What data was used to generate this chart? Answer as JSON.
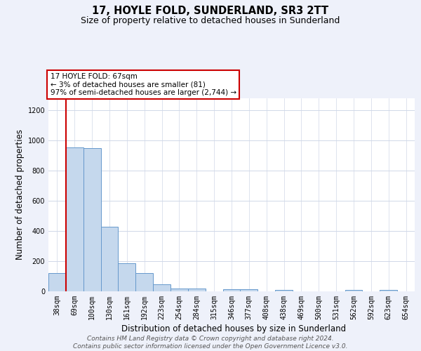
{
  "title": "17, HOYLE FOLD, SUNDERLAND, SR3 2TT",
  "subtitle": "Size of property relative to detached houses in Sunderland",
  "xlabel": "Distribution of detached houses by size in Sunderland",
  "ylabel": "Number of detached properties",
  "categories": [
    "38sqm",
    "69sqm",
    "100sqm",
    "130sqm",
    "161sqm",
    "192sqm",
    "223sqm",
    "254sqm",
    "284sqm",
    "315sqm",
    "346sqm",
    "377sqm",
    "408sqm",
    "438sqm",
    "469sqm",
    "500sqm",
    "531sqm",
    "562sqm",
    "592sqm",
    "623sqm",
    "654sqm"
  ],
  "values": [
    120,
    955,
    948,
    428,
    185,
    120,
    45,
    20,
    20,
    0,
    15,
    15,
    0,
    10,
    0,
    0,
    0,
    10,
    0,
    10,
    0
  ],
  "bar_color": "#c5d8ed",
  "bar_edge_color": "#6699cc",
  "highlight_line_color": "#cc0000",
  "highlight_bar_index": 1,
  "annotation_line1": "17 HOYLE FOLD: 67sqm",
  "annotation_line2": "← 3% of detached houses are smaller (81)",
  "annotation_line3": "97% of semi-detached houses are larger (2,744) →",
  "ylim": [
    0,
    1280
  ],
  "yticks": [
    0,
    200,
    400,
    600,
    800,
    1000,
    1200
  ],
  "footer_line1": "Contains HM Land Registry data © Crown copyright and database right 2024.",
  "footer_line2": "Contains public sector information licensed under the Open Government Licence v3.0.",
  "bg_color": "#eef1fa",
  "plot_bg_color": "#ffffff",
  "grid_color": "#d0d8e8",
  "title_fontsize": 10.5,
  "subtitle_fontsize": 9,
  "axis_label_fontsize": 8.5,
  "tick_fontsize": 7,
  "annotation_fontsize": 7.5,
  "footer_fontsize": 6.5
}
